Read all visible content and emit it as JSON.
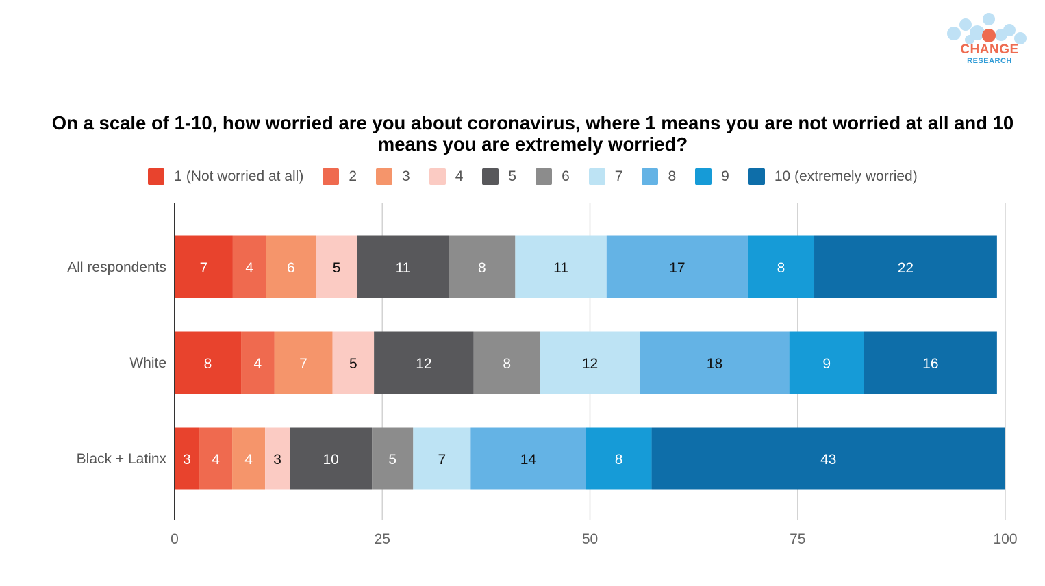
{
  "logo": {
    "name": "CHANGE",
    "sub": "RESEARCH"
  },
  "chart_data": {
    "type": "bar",
    "orientation": "horizontal",
    "stacked": true,
    "title": "On a scale of 1-10, how worried are you about coronavirus, where 1 means you are not worried at all and 10 means you are extremely worried?",
    "categories": [
      "All respondents",
      "White",
      "Black + Latinx"
    ],
    "series": [
      {
        "name": "1 (Not worried at all)",
        "color": "#e8432d",
        "values": [
          7,
          8,
          3
        ]
      },
      {
        "name": "2",
        "color": "#ef6a4f",
        "values": [
          4,
          4,
          4
        ]
      },
      {
        "name": "3",
        "color": "#f5956b",
        "values": [
          6,
          7,
          4
        ]
      },
      {
        "name": "4",
        "color": "#fbcbc3",
        "values": [
          5,
          5,
          3
        ]
      },
      {
        "name": "5",
        "color": "#58585b",
        "values": [
          11,
          12,
          10
        ]
      },
      {
        "name": "6",
        "color": "#8c8c8c",
        "values": [
          8,
          8,
          5
        ]
      },
      {
        "name": "7",
        "color": "#bde3f4",
        "values": [
          11,
          12,
          7
        ]
      },
      {
        "name": "8",
        "color": "#64b3e5",
        "values": [
          17,
          18,
          14
        ]
      },
      {
        "name": "9",
        "color": "#169bd7",
        "values": [
          8,
          9,
          8
        ]
      },
      {
        "name": "10 (extremely worried)",
        "color": "#0e6ea9",
        "values": [
          22,
          16,
          43
        ]
      }
    ],
    "x_ticks": [
      0,
      25,
      50,
      75,
      100
    ],
    "xlim": [
      0,
      100
    ],
    "grid": true,
    "legend_position": "top",
    "data_labels": true
  }
}
